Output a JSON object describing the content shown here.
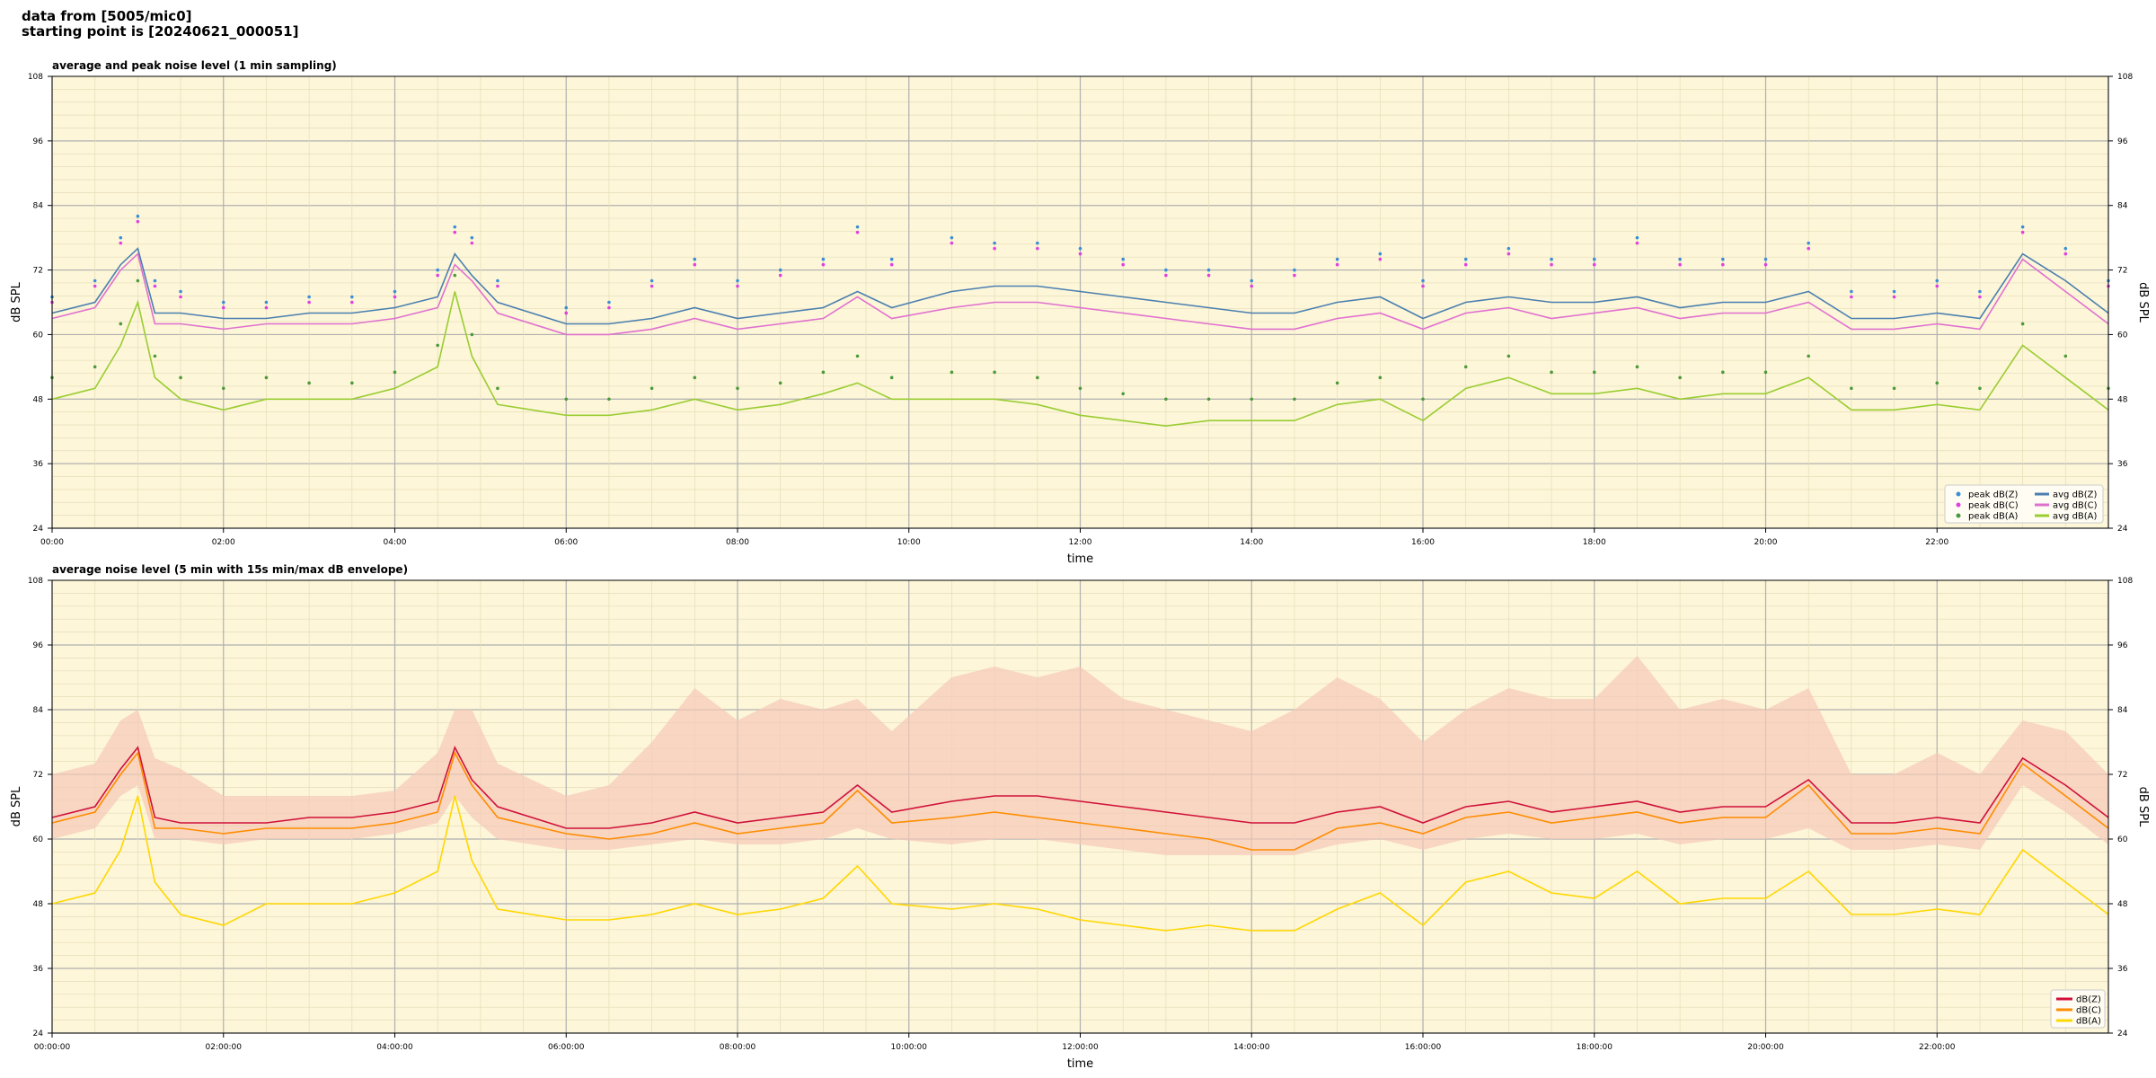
{
  "header": {
    "line1": "data from [5005/mic0]",
    "line2": "starting point is [20240621_000051]"
  },
  "colors": {
    "background": "#fdf6d8",
    "peak_z": "#3b8fd6",
    "peak_c": "#e040e0",
    "peak_a": "#4c9a3c",
    "avg_z": "#4a7fb0",
    "avg_c": "#e070d0",
    "avg_a": "#9acd32",
    "db_z": "#d0103a",
    "db_c": "#ff8c00",
    "db_a": "#ffd700",
    "envelope": "#f5c9b8"
  },
  "chart_data": [
    {
      "type": "line",
      "title": "average and peak noise level (1 min sampling)",
      "xlabel": "time",
      "ylabel": "dB SPL",
      "ylim": [
        24,
        108
      ],
      "xlim_hours": [
        0,
        24
      ],
      "yticks": [
        "24",
        "36",
        "48",
        "60",
        "72",
        "84",
        "96",
        "108"
      ],
      "xticks": [
        "00:00",
        "02:00",
        "04:00",
        "06:00",
        "08:00",
        "10:00",
        "12:00",
        "14:00",
        "16:00",
        "18:00",
        "20:00",
        "22:00"
      ],
      "grid": true,
      "legend_position": "bottom-right",
      "legend": [
        "peak dB(Z)",
        "peak dB(C)",
        "peak dB(A)",
        "avg dB(Z)",
        "avg dB(C)",
        "avg dB(A)"
      ],
      "x_hours": [
        0,
        0.5,
        0.8,
        1.0,
        1.2,
        1.5,
        2.0,
        2.5,
        3.0,
        3.5,
        4.0,
        4.5,
        4.7,
        4.9,
        5.2,
        6.0,
        6.5,
        7.0,
        7.5,
        8.0,
        8.5,
        9.0,
        9.4,
        9.8,
        10.5,
        11.0,
        11.5,
        12.0,
        12.5,
        13.0,
        13.5,
        14.0,
        14.5,
        15.0,
        15.5,
        16.0,
        16.5,
        17.0,
        17.5,
        18.0,
        18.5,
        19.0,
        19.5,
        20.0,
        20.5,
        21.0,
        21.5,
        22.0,
        22.5,
        23.0,
        23.5,
        24.0
      ],
      "series": [
        {
          "name": "avg dB(Z)",
          "style": "line",
          "values": [
            64,
            66,
            73,
            76,
            64,
            64,
            63,
            63,
            64,
            64,
            65,
            67,
            75,
            71,
            66,
            62,
            62,
            63,
            65,
            63,
            64,
            65,
            68,
            65,
            68,
            69,
            69,
            68,
            67,
            66,
            65,
            64,
            64,
            66,
            67,
            63,
            66,
            67,
            66,
            66,
            67,
            65,
            66,
            66,
            68,
            63,
            63,
            64,
            63,
            75,
            70,
            64
          ]
        },
        {
          "name": "avg dB(C)",
          "style": "line",
          "values": [
            63,
            65,
            72,
            75,
            62,
            62,
            61,
            62,
            62,
            62,
            63,
            65,
            73,
            70,
            64,
            60,
            60,
            61,
            63,
            61,
            62,
            63,
            67,
            63,
            65,
            66,
            66,
            65,
            64,
            63,
            62,
            61,
            61,
            63,
            64,
            61,
            64,
            65,
            63,
            64,
            65,
            63,
            64,
            64,
            66,
            61,
            61,
            62,
            61,
            74,
            68,
            62
          ]
        },
        {
          "name": "avg dB(A)",
          "style": "line",
          "values": [
            48,
            50,
            58,
            66,
            52,
            48,
            46,
            48,
            48,
            48,
            50,
            54,
            68,
            56,
            47,
            45,
            45,
            46,
            48,
            46,
            47,
            49,
            51,
            48,
            48,
            48,
            47,
            45,
            44,
            43,
            44,
            44,
            44,
            47,
            48,
            44,
            50,
            52,
            49,
            49,
            50,
            48,
            49,
            49,
            52,
            46,
            46,
            47,
            46,
            58,
            52,
            46
          ]
        },
        {
          "name": "peak dB(Z)",
          "style": "dots",
          "values": [
            67,
            70,
            78,
            82,
            70,
            68,
            66,
            66,
            67,
            67,
            68,
            72,
            80,
            78,
            70,
            65,
            66,
            70,
            74,
            70,
            72,
            74,
            80,
            74,
            78,
            77,
            77,
            76,
            74,
            72,
            72,
            70,
            72,
            74,
            75,
            70,
            74,
            76,
            74,
            74,
            78,
            74,
            74,
            74,
            77,
            68,
            68,
            70,
            68,
            80,
            76,
            70
          ]
        },
        {
          "name": "peak dB(C)",
          "style": "dots",
          "values": [
            66,
            69,
            77,
            81,
            69,
            67,
            65,
            65,
            66,
            66,
            67,
            71,
            79,
            77,
            69,
            64,
            65,
            69,
            73,
            69,
            71,
            73,
            79,
            73,
            77,
            76,
            76,
            75,
            73,
            71,
            71,
            69,
            71,
            73,
            74,
            69,
            73,
            75,
            73,
            73,
            77,
            73,
            73,
            73,
            76,
            67,
            67,
            69,
            67,
            79,
            75,
            69
          ]
        },
        {
          "name": "peak dB(A)",
          "style": "dots",
          "values": [
            52,
            54,
            62,
            70,
            56,
            52,
            50,
            52,
            51,
            51,
            53,
            58,
            71,
            60,
            50,
            48,
            48,
            50,
            52,
            50,
            51,
            53,
            56,
            52,
            53,
            53,
            52,
            50,
            49,
            48,
            48,
            48,
            48,
            51,
            52,
            48,
            54,
            56,
            53,
            53,
            54,
            52,
            53,
            53,
            56,
            50,
            50,
            51,
            50,
            62,
            56,
            50
          ]
        }
      ]
    },
    {
      "type": "area",
      "title": "average noise level (5 min with 15s min/max dB envelope)",
      "xlabel": "time",
      "ylabel": "dB SPL",
      "ylim": [
        24,
        108
      ],
      "xlim_hours": [
        0,
        24
      ],
      "yticks": [
        "24",
        "36",
        "48",
        "60",
        "72",
        "84",
        "96",
        "108"
      ],
      "xticks": [
        "00:00:00",
        "02:00:00",
        "04:00:00",
        "06:00:00",
        "08:00:00",
        "10:00:00",
        "12:00:00",
        "14:00:00",
        "16:00:00",
        "18:00:00",
        "20:00:00",
        "22:00:00"
      ],
      "grid": true,
      "legend_position": "bottom-right",
      "legend": [
        "dB(Z)",
        "dB(C)",
        "dB(A)"
      ],
      "x_hours": [
        0,
        0.5,
        0.8,
        1.0,
        1.2,
        1.5,
        2.0,
        2.5,
        3.0,
        3.5,
        4.0,
        4.5,
        4.7,
        4.9,
        5.2,
        6.0,
        6.5,
        7.0,
        7.5,
        8.0,
        8.5,
        9.0,
        9.4,
        9.8,
        10.5,
        11.0,
        11.5,
        12.0,
        12.5,
        13.0,
        13.5,
        14.0,
        14.5,
        15.0,
        15.5,
        16.0,
        16.5,
        17.0,
        17.5,
        18.0,
        18.5,
        19.0,
        19.5,
        20.0,
        20.5,
        21.0,
        21.5,
        22.0,
        22.5,
        23.0,
        23.5,
        24.0
      ],
      "envelope": {
        "min": [
          60,
          62,
          68,
          70,
          60,
          60,
          59,
          60,
          60,
          60,
          61,
          63,
          68,
          64,
          60,
          58,
          58,
          59,
          60,
          59,
          59,
          60,
          62,
          60,
          59,
          60,
          60,
          59,
          58,
          57,
          57,
          57,
          57,
          59,
          60,
          58,
          60,
          61,
          60,
          60,
          61,
          59,
          60,
          60,
          62,
          58,
          58,
          59,
          58,
          70,
          65,
          59
        ],
        "max": [
          72,
          74,
          82,
          84,
          75,
          73,
          68,
          68,
          68,
          68,
          69,
          76,
          84,
          84,
          74,
          68,
          70,
          78,
          88,
          82,
          86,
          84,
          86,
          80,
          90,
          92,
          90,
          92,
          86,
          84,
          82,
          80,
          84,
          90,
          86,
          78,
          84,
          88,
          86,
          86,
          94,
          84,
          86,
          84,
          88,
          72,
          72,
          76,
          72,
          82,
          80,
          72
        ]
      },
      "series": [
        {
          "name": "dB(Z)",
          "values": [
            64,
            66,
            73,
            77,
            64,
            63,
            63,
            63,
            64,
            64,
            65,
            67,
            77,
            71,
            66,
            62,
            62,
            63,
            65,
            63,
            64,
            65,
            70,
            65,
            67,
            68,
            68,
            67,
            66,
            65,
            64,
            63,
            63,
            65,
            66,
            63,
            66,
            67,
            65,
            66,
            67,
            65,
            66,
            66,
            71,
            63,
            63,
            64,
            63,
            75,
            70,
            64
          ]
        },
        {
          "name": "dB(C)",
          "values": [
            63,
            65,
            72,
            76,
            62,
            62,
            61,
            62,
            62,
            62,
            63,
            65,
            76,
            70,
            64,
            61,
            60,
            61,
            63,
            61,
            62,
            63,
            69,
            63,
            64,
            65,
            64,
            63,
            62,
            61,
            60,
            58,
            58,
            62,
            63,
            61,
            64,
            65,
            63,
            64,
            65,
            63,
            64,
            64,
            70,
            61,
            61,
            62,
            61,
            74,
            68,
            62
          ]
        },
        {
          "name": "dB(A)",
          "values": [
            48,
            50,
            58,
            68,
            52,
            46,
            44,
            48,
            48,
            48,
            50,
            54,
            68,
            56,
            47,
            45,
            45,
            46,
            48,
            46,
            47,
            49,
            55,
            48,
            47,
            48,
            47,
            45,
            44,
            43,
            44,
            43,
            43,
            47,
            50,
            44,
            52,
            54,
            50,
            49,
            54,
            48,
            49,
            49,
            54,
            46,
            46,
            47,
            46,
            58,
            52,
            46
          ]
        }
      ]
    }
  ]
}
